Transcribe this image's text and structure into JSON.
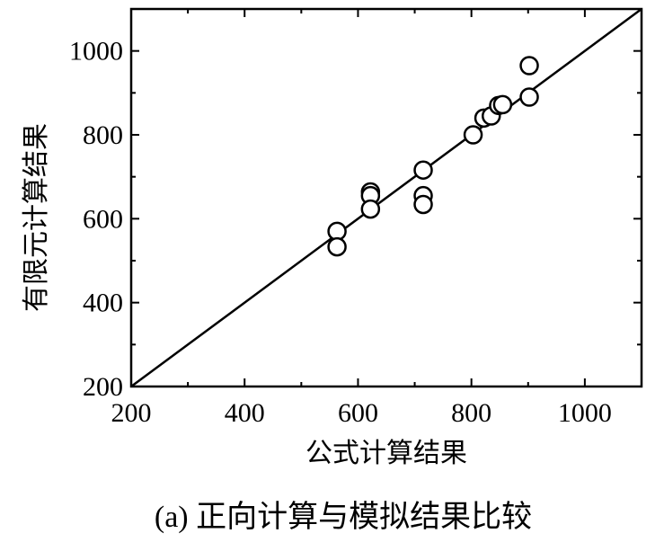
{
  "chart_data": {
    "type": "scatter",
    "caption": "(a) 正向计算与模拟结果比较",
    "xlabel": "公式计算结果",
    "ylabel": "有限元计算结果",
    "xlim": [
      200,
      1100
    ],
    "ylim": [
      200,
      1100
    ],
    "x_ticks": [
      200,
      400,
      600,
      800,
      1000
    ],
    "y_ticks": [
      200,
      400,
      600,
      800,
      1000
    ],
    "reference_line": {
      "from": [
        200,
        200
      ],
      "to": [
        1100,
        1100
      ]
    },
    "marker": "open-circle",
    "grid": false,
    "legend": "none",
    "points": [
      {
        "x": 563,
        "y": 570
      },
      {
        "x": 563,
        "y": 533
      },
      {
        "x": 622,
        "y": 664
      },
      {
        "x": 622,
        "y": 655
      },
      {
        "x": 622,
        "y": 623
      },
      {
        "x": 715,
        "y": 716
      },
      {
        "x": 715,
        "y": 655
      },
      {
        "x": 715,
        "y": 634
      },
      {
        "x": 803,
        "y": 800
      },
      {
        "x": 822,
        "y": 840
      },
      {
        "x": 835,
        "y": 845
      },
      {
        "x": 848,
        "y": 870
      },
      {
        "x": 855,
        "y": 872
      },
      {
        "x": 902,
        "y": 965
      },
      {
        "x": 902,
        "y": 890
      }
    ]
  },
  "colors": {
    "axis": "#000000",
    "marker_stroke": "#000000",
    "marker_fill": "#ffffff",
    "background": "#ffffff"
  }
}
